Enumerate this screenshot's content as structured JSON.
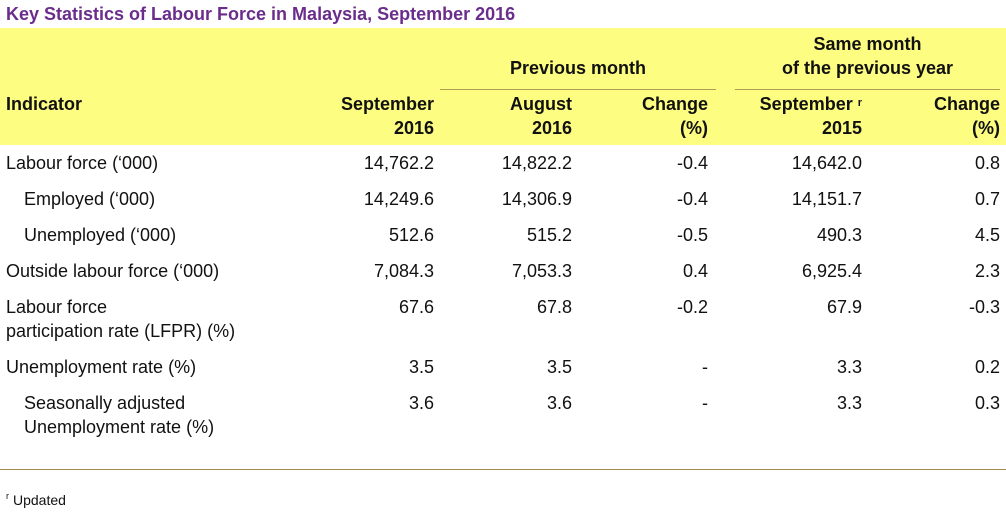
{
  "title": "Key Statistics of Labour Force in Malaysia, September 2016",
  "table": {
    "groups": [
      {
        "lines": [
          "Previous month"
        ],
        "span": [
          2,
          3
        ]
      },
      {
        "lines": [
          "Same month",
          "of the previous year"
        ],
        "span": [
          4,
          5
        ]
      }
    ],
    "columns": [
      {
        "lines": [
          "Indicator"
        ]
      },
      {
        "lines": [
          "September",
          "2016"
        ]
      },
      {
        "lines": [
          "August",
          "2016"
        ]
      },
      {
        "lines": [
          "Change",
          "(%)"
        ]
      },
      {
        "lines": [
          "September",
          "2015"
        ],
        "note": "r"
      },
      {
        "lines": [
          "Change",
          "(%)"
        ]
      }
    ],
    "rows": [
      {
        "label": [
          "Labour force (‘000)"
        ],
        "indent": false,
        "cells": [
          "14,762.2",
          "14,822.2",
          "-0.4",
          "14,642.0",
          "0.8"
        ]
      },
      {
        "label": [
          "Employed (‘000)"
        ],
        "indent": true,
        "cells": [
          "14,249.6",
          "14,306.9",
          "-0.4",
          "14,151.7",
          "0.7"
        ]
      },
      {
        "label": [
          "Unemployed (‘000)"
        ],
        "indent": true,
        "cells": [
          "512.6",
          "515.2",
          "-0.5",
          "490.3",
          "4.5"
        ]
      },
      {
        "label": [
          "Outside labour force (‘000)"
        ],
        "indent": false,
        "cells": [
          "7,084.3",
          "7,053.3",
          "0.4",
          "6,925.4",
          "2.3"
        ]
      },
      {
        "label": [
          "Labour force",
          "participation rate (LFPR) (%)"
        ],
        "indent": false,
        "cells": [
          "67.6",
          "67.8",
          "-0.2",
          "67.9",
          "-0.3"
        ]
      },
      {
        "label": [
          "Unemployment rate (%)"
        ],
        "indent": false,
        "cells": [
          "3.5",
          "3.5",
          "-",
          "3.3",
          "0.2"
        ]
      },
      {
        "label": [
          "Seasonally adjusted",
          "Unemployment rate (%)"
        ],
        "indent": true,
        "cells": [
          "3.6",
          "3.6",
          "-",
          "3.3",
          "0.3"
        ]
      }
    ]
  },
  "footnote": {
    "mark": "r",
    "text": "Updated"
  }
}
